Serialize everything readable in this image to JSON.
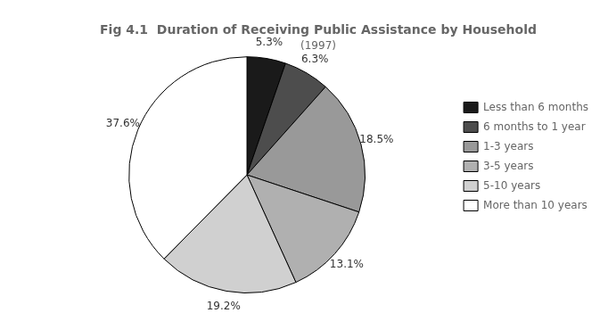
{
  "chart_data": {
    "type": "pie",
    "title": "Fig 4.1  Duration of Receiving Public Assistance by Household",
    "subtitle": "(1997)",
    "categories": [
      "Less than 6 months",
      "6 months to 1 year",
      "1-3 years",
      "3-5 years",
      "5-10 years",
      "More than 10 years"
    ],
    "values": [
      5.3,
      6.3,
      18.5,
      13.1,
      19.2,
      37.6
    ],
    "value_labels": [
      "5.3%",
      "6.3%",
      "18.5%",
      "13.1%",
      "19.2%",
      "37.6%"
    ],
    "colors": [
      "#1a1a1a",
      "#4d4d4d",
      "#999999",
      "#b0b0b0",
      "#d0d0d0",
      "#ffffff"
    ],
    "data_labels": true,
    "legend": "right"
  }
}
